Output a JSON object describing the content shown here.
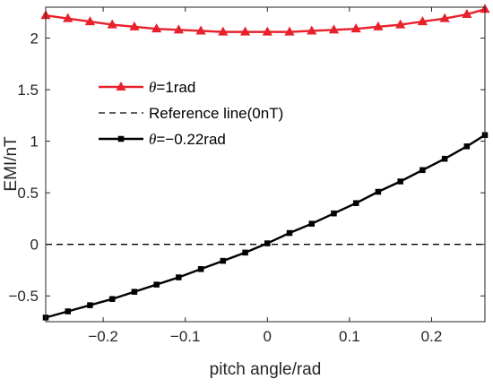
{
  "chart_data": {
    "type": "line",
    "title": "",
    "xlabel": "pitch angle/rad",
    "ylabel": "EMI/nT",
    "xlim": [
      -0.27,
      0.265
    ],
    "ylim": [
      -0.75,
      2.3
    ],
    "xticks": [
      -0.2,
      -0.1,
      0,
      0.1,
      0.2
    ],
    "xtick_labels": [
      "−0.2",
      "−0.1",
      "0",
      "0.1",
      "0.2"
    ],
    "yticks": [
      -0.5,
      0,
      0.5,
      1,
      1.5,
      2
    ],
    "ytick_labels": [
      "−0.5",
      "0",
      "0.5",
      "1",
      "1.5",
      "2"
    ],
    "grid": false,
    "legend_position": "upper-left",
    "series": [
      {
        "name_symbol": "θ",
        "name_rest": "=1rad",
        "color": "#e8212b",
        "marker": "triangle",
        "line_style": "solid",
        "x": [
          -0.27,
          -0.243,
          -0.216,
          -0.189,
          -0.162,
          -0.135,
          -0.108,
          -0.081,
          -0.054,
          -0.027,
          0,
          0.027,
          0.054,
          0.081,
          0.108,
          0.135,
          0.162,
          0.189,
          0.216,
          0.243,
          0.265
        ],
        "y": [
          2.22,
          2.19,
          2.16,
          2.13,
          2.11,
          2.09,
          2.08,
          2.07,
          2.06,
          2.06,
          2.06,
          2.06,
          2.07,
          2.08,
          2.09,
          2.11,
          2.13,
          2.16,
          2.19,
          2.23,
          2.28
        ]
      },
      {
        "name": "Reference line(0nT)",
        "color": "#000000",
        "marker": "none",
        "line_style": "dashed",
        "x": [
          -0.27,
          0.265
        ],
        "y": [
          0,
          0
        ]
      },
      {
        "name_symbol": "θ",
        "name_rest": "=−0.22rad",
        "color": "#000000",
        "marker": "square",
        "line_style": "solid",
        "x": [
          -0.27,
          -0.243,
          -0.216,
          -0.189,
          -0.162,
          -0.135,
          -0.108,
          -0.081,
          -0.054,
          -0.027,
          0,
          0.027,
          0.054,
          0.081,
          0.108,
          0.135,
          0.162,
          0.189,
          0.216,
          0.243,
          0.265
        ],
        "y": [
          -0.71,
          -0.65,
          -0.59,
          -0.53,
          -0.46,
          -0.39,
          -0.32,
          -0.24,
          -0.16,
          -0.08,
          0.01,
          0.11,
          0.2,
          0.3,
          0.4,
          0.51,
          0.61,
          0.72,
          0.83,
          0.95,
          1.06
        ]
      }
    ]
  }
}
